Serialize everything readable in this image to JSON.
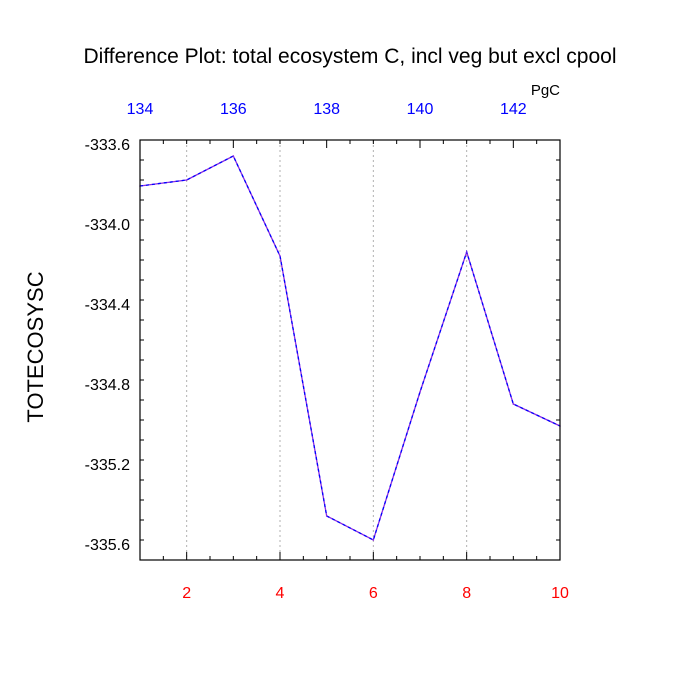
{
  "chart_data": {
    "type": "line",
    "title": "Difference Plot: total ecosystem C, incl veg but excl cpool",
    "ylabel": "TOTECOSYSC",
    "units": "PgC",
    "xlim": [
      1,
      10
    ],
    "ylim": [
      -335.68,
      -333.58
    ],
    "x_ticks": [
      2,
      4,
      6,
      8,
      10
    ],
    "x_tick_labels": [
      "2",
      "4",
      "6",
      "8",
      "10"
    ],
    "top_xlim": [
      134,
      143
    ],
    "top_ticks": [
      134,
      136,
      138,
      140,
      142
    ],
    "top_tick_labels": [
      "134",
      "136",
      "138",
      "140",
      "142"
    ],
    "y_ticks": [
      -333.6,
      -334.0,
      -334.4,
      -334.8,
      -335.2,
      -335.6
    ],
    "y_tick_labels": [
      "-333.6",
      "-334.0",
      "-334.4",
      "-334.8",
      "-335.2",
      "-335.6"
    ],
    "grid_x": [
      2,
      4,
      6,
      8
    ],
    "series": [
      {
        "x": [
          1,
          2,
          3,
          4,
          5,
          6,
          7,
          8,
          9,
          10
        ],
        "values": [
          -333.81,
          -333.78,
          -333.66,
          -334.16,
          -335.46,
          -335.58,
          -334.84,
          -334.14,
          -334.9,
          -335.01
        ],
        "color": "#8a2be2",
        "dash_color": "#0000ff"
      }
    ],
    "colors": {
      "bottom_axis_labels": "#ff0000",
      "top_axis_labels": "#0000ff",
      "grid": "#b0b0b0"
    }
  }
}
